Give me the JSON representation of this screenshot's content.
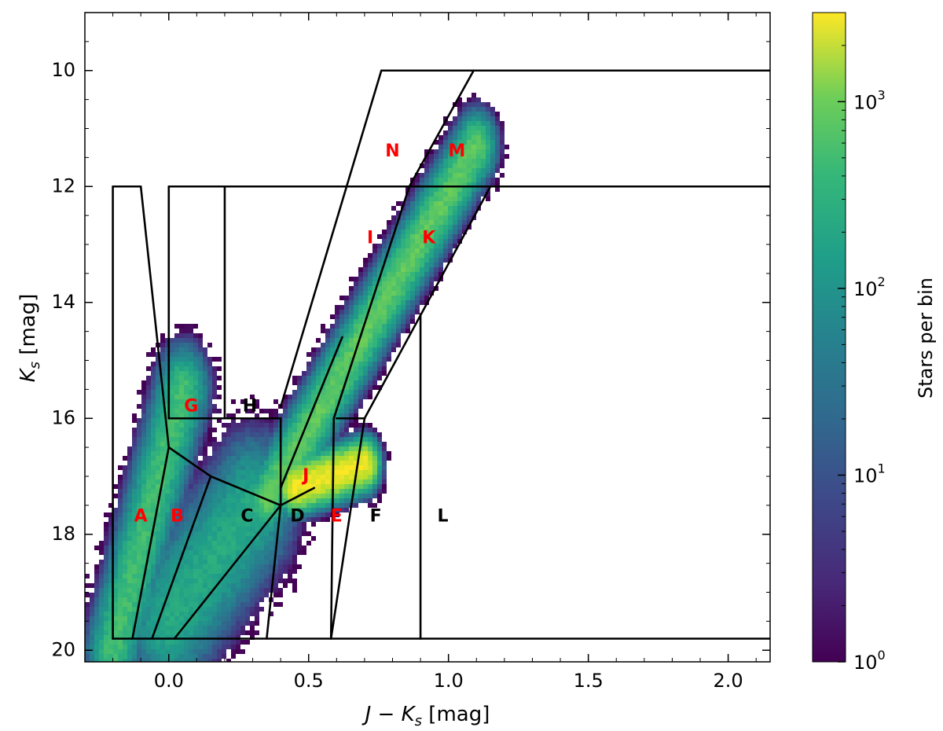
{
  "chart_data": {
    "type": "heatmap",
    "xlabel_main": "J − K",
    "xlabel_sub": "s",
    "xlabel_unit": " [mag]",
    "ylabel_main": "K",
    "ylabel_sub": "s",
    "ylabel_unit": " [mag]",
    "xlim": [
      -0.3,
      2.15
    ],
    "ylim": [
      20.2,
      9.0
    ],
    "y_inverted": true,
    "x_ticks": [
      -0.0,
      0.5,
      1.0,
      1.5,
      2.0
    ],
    "x_tick_labels": [
      "0.0",
      "0.5",
      "1.0",
      "1.5",
      "2.0"
    ],
    "y_ticks": [
      10,
      12,
      14,
      16,
      18,
      20
    ],
    "y_tick_labels": [
      "10",
      "12",
      "14",
      "16",
      "18",
      "20"
    ],
    "colorbar": {
      "label": "Stars per bin",
      "scale": "log",
      "range": [
        1,
        3000
      ],
      "colormap": "viridis",
      "ticks": [
        1,
        10,
        100,
        1000
      ],
      "tick_bases": [
        "10",
        "10",
        "10",
        "10"
      ],
      "tick_exponents": [
        "0",
        "1",
        "2",
        "3"
      ]
    },
    "density_ridges": [
      {
        "from": [
          -0.2,
          20.0
        ],
        "to": [
          0.05,
          15.5
        ],
        "width": 0.09,
        "peak": 2.4
      },
      {
        "from": [
          0.35,
          17.4
        ],
        "to": [
          1.1,
          11.3
        ],
        "width": 0.07,
        "peak": 2.6
      },
      {
        "from": [
          0.45,
          17.2
        ],
        "to": [
          0.7,
          16.8
        ],
        "width": 0.05,
        "peak": 3.4
      },
      {
        "from": [
          0.0,
          19.5
        ],
        "to": [
          0.3,
          17.5
        ],
        "width": 0.15,
        "peak": 2.1
      }
    ],
    "region_boundaries": [
      [
        [
          0.76,
          10.0
        ],
        [
          2.15,
          10.0
        ]
      ],
      [
        [
          0.76,
          10.0
        ],
        [
          0.4,
          15.8
        ]
      ],
      [
        [
          1.09,
          10.0
        ],
        [
          0.86,
          12.0
        ]
      ],
      [
        [
          -0.2,
          12.0
        ],
        [
          -0.1,
          12.0
        ]
      ],
      [
        [
          -0.2,
          12.0
        ],
        [
          -0.2,
          19.8
        ]
      ],
      [
        [
          -0.1,
          12.0
        ],
        [
          0.0,
          16.5
        ]
      ],
      [
        [
          0.0,
          12.0
        ],
        [
          2.15,
          12.0
        ]
      ],
      [
        [
          0.0,
          12.0
        ],
        [
          0.0,
          16.0
        ]
      ],
      [
        [
          0.2,
          12.0
        ],
        [
          0.2,
          16.0
        ]
      ],
      [
        [
          0.0,
          16.0
        ],
        [
          0.4,
          16.0
        ]
      ],
      [
        [
          0.4,
          16.0
        ],
        [
          0.4,
          17.5
        ]
      ],
      [
        [
          0.0,
          16.5
        ],
        [
          0.15,
          17.0
        ]
      ],
      [
        [
          0.15,
          17.0
        ],
        [
          0.4,
          17.5
        ]
      ],
      [
        [
          0.0,
          16.5
        ],
        [
          -0.13,
          19.8
        ]
      ],
      [
        [
          0.15,
          17.0
        ],
        [
          -0.06,
          19.8
        ]
      ],
      [
        [
          0.4,
          17.5
        ],
        [
          0.02,
          19.8
        ]
      ],
      [
        [
          0.4,
          17.5
        ],
        [
          0.35,
          19.8
        ]
      ],
      [
        [
          0.4,
          17.5
        ],
        [
          0.52,
          17.2
        ]
      ],
      [
        [
          0.4,
          17.2
        ],
        [
          0.62,
          14.6
        ]
      ],
      [
        [
          0.86,
          12.0
        ],
        [
          0.59,
          16.0
        ]
      ],
      [
        [
          0.59,
          16.0
        ],
        [
          0.58,
          19.8
        ]
      ],
      [
        [
          0.6,
          16.0
        ],
        [
          0.7,
          16.0
        ]
      ],
      [
        [
          0.7,
          16.0
        ],
        [
          0.58,
          19.8
        ]
      ],
      [
        [
          1.15,
          12.0
        ],
        [
          0.7,
          16.0
        ]
      ],
      [
        [
          0.9,
          14.2
        ],
        [
          0.9,
          19.8
        ]
      ],
      [
        [
          -0.2,
          19.8
        ],
        [
          2.15,
          19.8
        ]
      ]
    ],
    "region_labels": [
      {
        "text": "A",
        "x": -0.1,
        "y": 17.7,
        "color": "#ff0000"
      },
      {
        "text": "B",
        "x": 0.03,
        "y": 17.7,
        "color": "#ff0000"
      },
      {
        "text": "C",
        "x": 0.28,
        "y": 17.7,
        "color": "#000000"
      },
      {
        "text": "D",
        "x": 0.46,
        "y": 17.7,
        "color": "#000000"
      },
      {
        "text": "E",
        "x": 0.6,
        "y": 17.7,
        "color": "#ff0000"
      },
      {
        "text": "F",
        "x": 0.74,
        "y": 17.7,
        "color": "#000000"
      },
      {
        "text": "G",
        "x": 0.08,
        "y": 15.8,
        "color": "#ff0000"
      },
      {
        "text": "H",
        "x": 0.29,
        "y": 15.8,
        "color": "#000000"
      },
      {
        "text": "I",
        "x": 0.72,
        "y": 12.9,
        "color": "#ff0000"
      },
      {
        "text": "J",
        "x": 0.49,
        "y": 17.0,
        "color": "#ff0000"
      },
      {
        "text": "K",
        "x": 0.93,
        "y": 12.9,
        "color": "#ff0000"
      },
      {
        "text": "L",
        "x": 0.98,
        "y": 17.7,
        "color": "#000000"
      },
      {
        "text": "M",
        "x": 1.03,
        "y": 11.4,
        "color": "#ff0000"
      },
      {
        "text": "N",
        "x": 0.8,
        "y": 11.4,
        "color": "#ff0000"
      }
    ]
  }
}
